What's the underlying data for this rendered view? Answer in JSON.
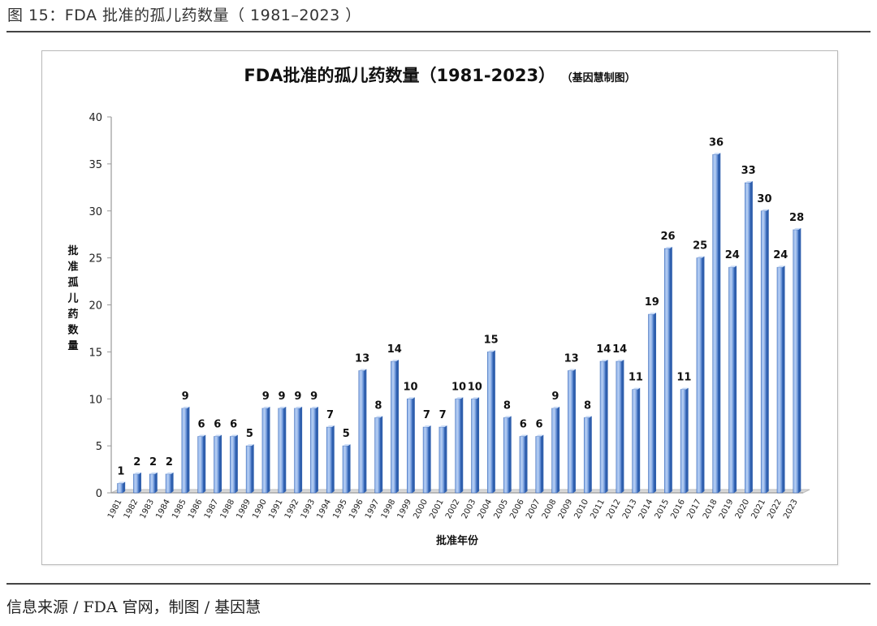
{
  "figure": {
    "caption": "图 15：FDA 批准的孤儿药数量（ 1981–2023 ）",
    "source": "信息来源 / FDA 官网，制图 / 基因慧"
  },
  "chart_data": {
    "type": "bar",
    "title": "FDA批准的孤儿药数量（1981-2023）",
    "title_note": "（基因慧制图）",
    "xlabel": "批准年份",
    "ylabel": "批准孤儿药数量",
    "ylim": [
      0,
      40
    ],
    "yticks": [
      0,
      5,
      10,
      15,
      20,
      25,
      30,
      35,
      40
    ],
    "grid": false,
    "bar_color": "#5b8fd9",
    "categories": [
      "1981",
      "1982",
      "1983",
      "1984",
      "1985",
      "1986",
      "1987",
      "1988",
      "1989",
      "1990",
      "1991",
      "1992",
      "1993",
      "1994",
      "1995",
      "1996",
      "1997",
      "1998",
      "1999",
      "2000",
      "2001",
      "2002",
      "2003",
      "2004",
      "2005",
      "2006",
      "2007",
      "2008",
      "2009",
      "2010",
      "2011",
      "2012",
      "2013",
      "2014",
      "2015",
      "2016",
      "2017",
      "2018",
      "2019",
      "2020",
      "2021",
      "2022",
      "2023"
    ],
    "values": [
      1,
      2,
      2,
      2,
      9,
      6,
      6,
      6,
      5,
      9,
      9,
      9,
      9,
      7,
      5,
      13,
      8,
      14,
      10,
      7,
      7,
      10,
      10,
      15,
      8,
      6,
      6,
      9,
      13,
      8,
      14,
      14,
      11,
      19,
      26,
      11,
      25,
      36,
      24,
      33,
      30,
      24,
      28
    ]
  }
}
